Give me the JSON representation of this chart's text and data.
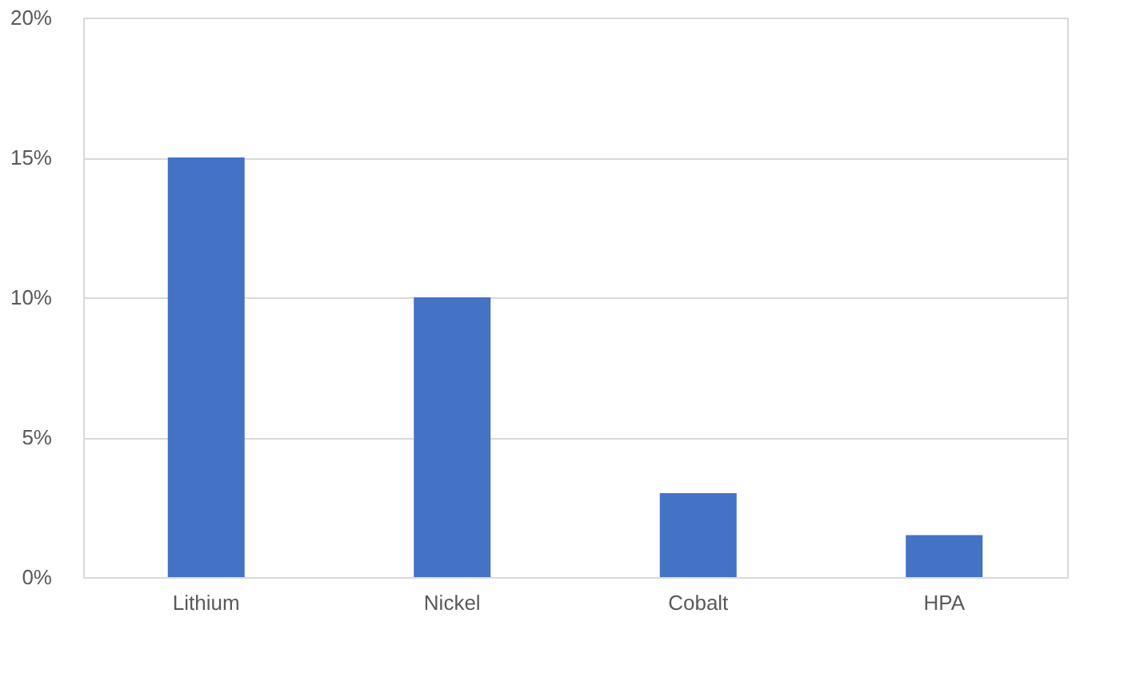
{
  "chart_data": {
    "type": "bar",
    "categories": [
      "Lithium",
      "Nickel",
      "Cobalt",
      "HPA"
    ],
    "values": [
      15,
      10,
      3,
      1.5
    ],
    "color": "#4472c4",
    "ylim": [
      0,
      20
    ],
    "yticks": [
      {
        "value": 0,
        "label": "0%"
      },
      {
        "value": 5,
        "label": "5%"
      },
      {
        "value": 10,
        "label": "10%"
      },
      {
        "value": 15,
        "label": "15%"
      },
      {
        "value": 20,
        "label": "20%"
      }
    ],
    "grid": "y"
  }
}
